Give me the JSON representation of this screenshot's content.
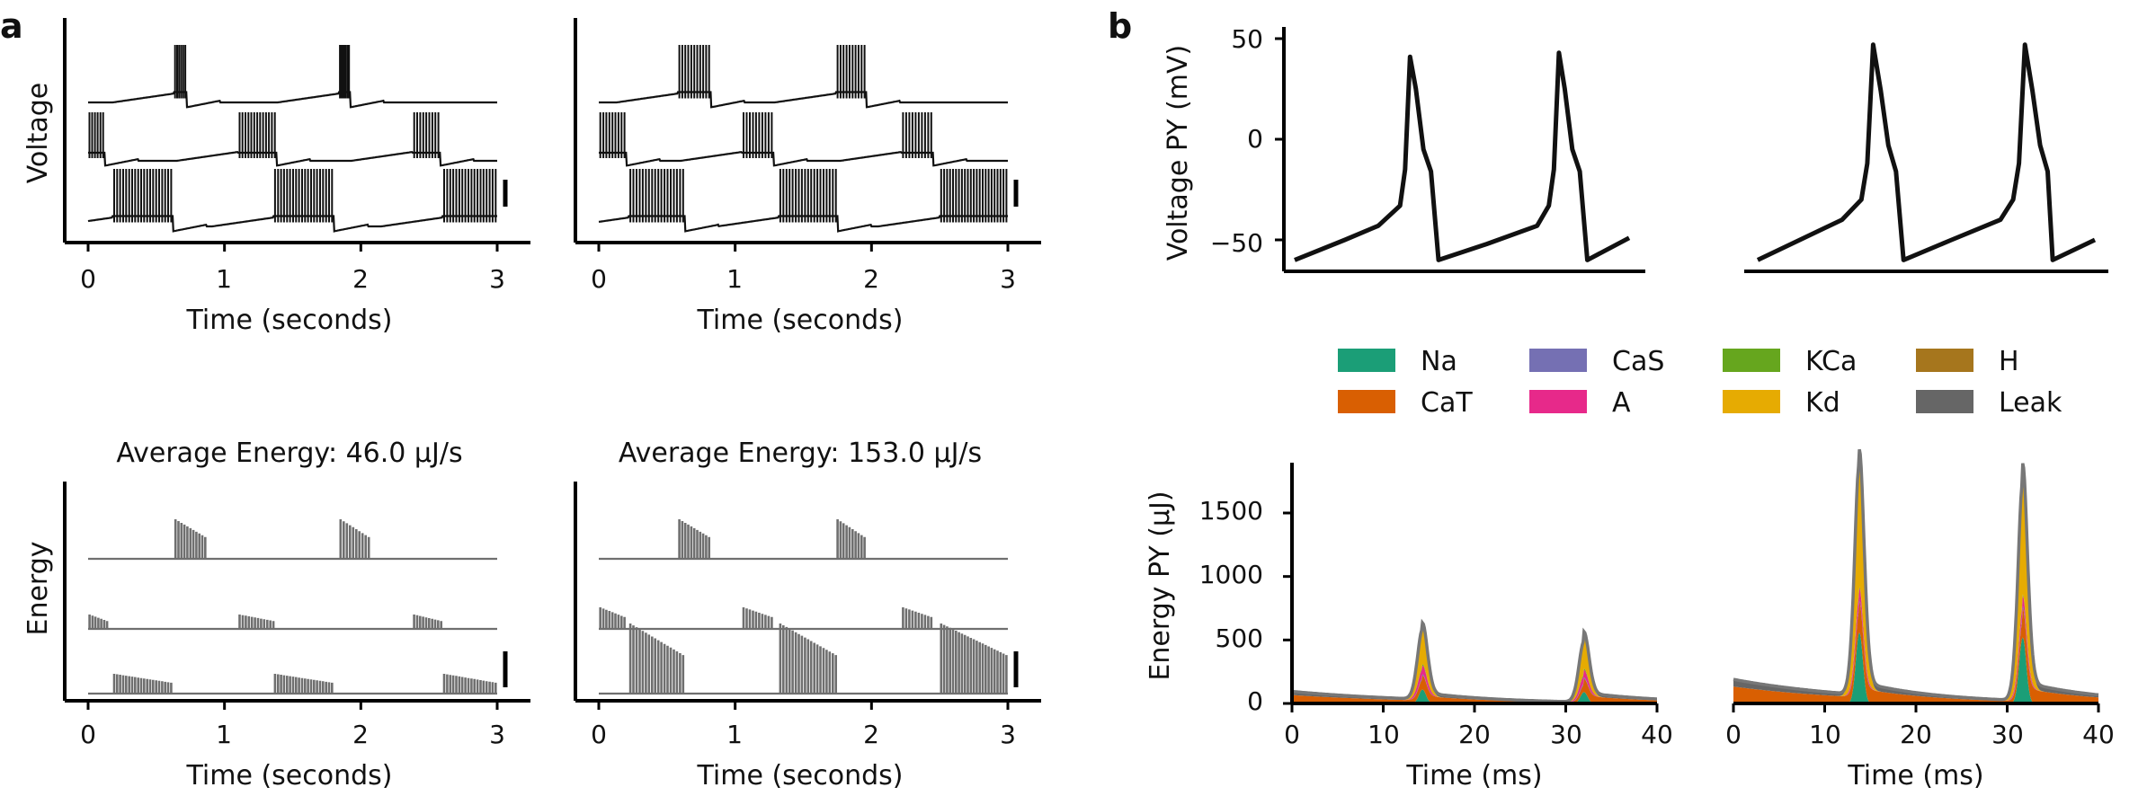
{
  "panel_labels": {
    "a": "a",
    "b": "b"
  },
  "colors": {
    "Na": "#1b9e77",
    "CaT": "#d95f02",
    "CaS": "#7570b3",
    "A": "#e7298a",
    "KCa": "#66a61e",
    "Kd": "#e6ab02",
    "H": "#a6761d",
    "Leak": "#666666",
    "trace": "#111111",
    "energy_trace": "#6f6f6f"
  },
  "voltage_panels": {
    "ylabel": "Voltage",
    "xlabel": "Time (seconds)",
    "xticks": [
      "0",
      "1",
      "2",
      "3"
    ]
  },
  "energy_panels": {
    "ylabel": "Energy",
    "xlabel": "Time (seconds)",
    "xticks": [
      "0",
      "1",
      "2",
      "3"
    ],
    "titles": [
      "Average Energy: 46.0 μJ/s",
      "Average Energy: 153.0 μJ/s"
    ]
  },
  "b_voltage": {
    "ylabel": "Voltage PY (mV)",
    "yticks": [
      "50",
      "0",
      "−50"
    ]
  },
  "b_energy": {
    "ylabel": "Energy PY (μJ)",
    "yticks": [
      "1500",
      "1000",
      "500",
      "0"
    ],
    "xlabel": "Time (ms)",
    "xticks": [
      "0",
      "10",
      "20",
      "30",
      "40"
    ]
  },
  "legend": {
    "items": [
      {
        "label": "Na",
        "color": "#1b9e77"
      },
      {
        "label": "CaT",
        "color": "#d95f02"
      },
      {
        "label": "CaS",
        "color": "#7570b3"
      },
      {
        "label": "A",
        "color": "#e7298a"
      },
      {
        "label": "KCa",
        "color": "#66a61e"
      },
      {
        "label": "Kd",
        "color": "#e6ab02"
      },
      {
        "label": "H",
        "color": "#a6761d"
      },
      {
        "label": "Leak",
        "color": "#666666"
      }
    ]
  },
  "chart_data": [
    {
      "type": "line",
      "panel": "a-top-left",
      "xlabel": "Time (seconds)",
      "ylabel": "Voltage",
      "xlim": [
        0,
        3
      ],
      "series": [
        {
          "bursts": [
            [
              0.63,
              0.72
            ],
            [
              1.84,
              1.92
            ]
          ]
        },
        {
          "bursts": [
            [
              0.0,
              0.12
            ],
            [
              1.1,
              1.38
            ],
            [
              2.38,
              2.58
            ]
          ]
        },
        {
          "bursts": [
            [
              0.18,
              0.62
            ],
            [
              1.36,
              1.8
            ],
            [
              2.6,
              3.0
            ]
          ]
        }
      ]
    },
    {
      "type": "line",
      "panel": "a-top-right",
      "xlabel": "Time (seconds)",
      "xlim": [
        0,
        3
      ],
      "series": [
        {
          "bursts": [
            [
              0.58,
              0.82
            ],
            [
              1.74,
              1.96
            ]
          ]
        },
        {
          "bursts": [
            [
              0.0,
              0.2
            ],
            [
              1.05,
              1.28
            ],
            [
              2.22,
              2.45
            ]
          ]
        },
        {
          "bursts": [
            [
              0.22,
              0.63
            ],
            [
              1.32,
              1.75
            ],
            [
              2.5,
              3.0
            ]
          ]
        }
      ]
    },
    {
      "type": "line",
      "panel": "a-bottom-left",
      "title": "Average Energy: 46.0 μJ/s",
      "xlabel": "Time (seconds)",
      "ylabel": "Energy",
      "xlim": [
        0,
        3
      ],
      "series": [
        {
          "bursts": [
            [
              0.63,
              0.87
            ],
            [
              1.84,
              2.07
            ]
          ]
        },
        {
          "bursts": [
            [
              0.0,
              0.15
            ],
            [
              1.1,
              1.37
            ],
            [
              2.38,
              2.6
            ]
          ]
        },
        {
          "bursts": [
            [
              0.18,
              0.62
            ],
            [
              1.36,
              1.8
            ],
            [
              2.6,
              3.0
            ]
          ]
        }
      ]
    },
    {
      "type": "line",
      "panel": "a-bottom-right",
      "title": "Average Energy: 153.0 μJ/s",
      "xlabel": "Time (seconds)",
      "xlim": [
        0,
        3
      ],
      "series": [
        {
          "bursts": [
            [
              0.58,
              0.82
            ],
            [
              1.74,
              1.96
            ]
          ]
        },
        {
          "bursts": [
            [
              0.0,
              0.2
            ],
            [
              1.05,
              1.28
            ],
            [
              2.22,
              2.45
            ]
          ]
        },
        {
          "bursts": [
            [
              0.22,
              0.63
            ],
            [
              1.32,
              1.75
            ],
            [
              2.5,
              3.0
            ]
          ]
        }
      ]
    },
    {
      "type": "line",
      "panel": "b-voltage-left",
      "ylabel": "Voltage PY (mV)",
      "xlim": [
        0,
        40
      ],
      "ylim": [
        -65,
        55
      ],
      "series": [
        {
          "x": [
            0,
            6,
            10,
            12.6,
            13.2,
            13.8,
            14.5,
            15.4,
            16.3,
            17.2,
            23,
            29,
            30.4,
            31.0,
            31.6,
            32.3,
            33.2,
            34.1,
            35.0,
            40
          ],
          "y": [
            -60,
            -50,
            -43,
            -33,
            -15,
            41,
            25,
            -5,
            -16,
            -60,
            -52,
            -43,
            -33,
            -15,
            43,
            25,
            -5,
            -16,
            -60,
            -49
          ]
        }
      ]
    },
    {
      "type": "line",
      "panel": "b-voltage-right",
      "xlim": [
        0,
        40
      ],
      "ylim": [
        -65,
        55
      ],
      "series": [
        {
          "x": [
            0,
            6,
            10,
            12.3,
            13.0,
            13.7,
            14.6,
            15.5,
            16.4,
            17.3,
            23,
            28.8,
            30.3,
            31.0,
            31.7,
            32.6,
            33.5,
            34.4,
            35.0,
            40
          ],
          "y": [
            -60,
            -48,
            -40,
            -30,
            -12,
            47,
            24,
            -3,
            -16,
            -60,
            -50,
            -40,
            -30,
            -12,
            47,
            24,
            -3,
            -16,
            -60,
            -50
          ]
        }
      ]
    },
    {
      "type": "area",
      "panel": "b-energy-left",
      "xlabel": "Time (ms)",
      "ylabel": "Energy PY (μJ)",
      "xlim": [
        0,
        40
      ],
      "ylim": [
        0,
        1850
      ],
      "peaks_ms": [
        14.3,
        32.0
      ],
      "peak_totals": [
        550,
        480
      ],
      "baseline_start": 95,
      "series": [
        {
          "name": "Na",
          "peak": [
            110,
            90
          ]
        },
        {
          "name": "CaT",
          "peak": [
            50,
            45
          ]
        },
        {
          "name": "CaS",
          "peak": [
            10,
            10
          ]
        },
        {
          "name": "A",
          "peak": [
            70,
            60
          ]
        },
        {
          "name": "KCa",
          "peak": [
            10,
            10
          ]
        },
        {
          "name": "Kd",
          "peak": [
            280,
            245
          ]
        },
        {
          "name": "H",
          "peak": [
            10,
            10
          ]
        },
        {
          "name": "Leak",
          "peak": [
            10,
            10
          ]
        }
      ]
    },
    {
      "type": "area",
      "panel": "b-energy-right",
      "xlabel": "Time (ms)",
      "xlim": [
        0,
        40
      ],
      "ylim": [
        0,
        1850
      ],
      "peaks_ms": [
        13.8,
        31.7
      ],
      "peak_totals": [
        1830,
        1720
      ],
      "baseline_start": 190,
      "series": [
        {
          "name": "Na",
          "peak": [
            560,
            520
          ]
        },
        {
          "name": "CaT",
          "peak": [
            120,
            110
          ]
        },
        {
          "name": "CaS",
          "peak": [
            20,
            20
          ]
        },
        {
          "name": "A",
          "peak": [
            90,
            80
          ]
        },
        {
          "name": "KCa",
          "peak": [
            10,
            10
          ]
        },
        {
          "name": "Kd",
          "peak": [
            1000,
            950
          ]
        },
        {
          "name": "H",
          "peak": [
            15,
            15
          ]
        },
        {
          "name": "Leak",
          "peak": [
            15,
            15
          ]
        }
      ]
    }
  ]
}
